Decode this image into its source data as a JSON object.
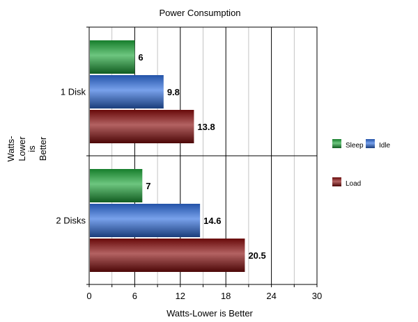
{
  "chart_data": {
    "type": "bar",
    "orientation": "horizontal",
    "title": "Power Consumption",
    "xlabel": "Watts-Lower is Better",
    "ylabel": [
      "Watts-",
      "Lower",
      "is",
      "Better"
    ],
    "categories": [
      "1 Disk",
      "2 Disks"
    ],
    "series": [
      {
        "name": "Sleep",
        "values": [
          6,
          7
        ],
        "color": "#1fa83a"
      },
      {
        "name": "Idle",
        "values": [
          9.8,
          14.6
        ],
        "color": "#2f6fe0"
      },
      {
        "name": "Load",
        "values": [
          13.8,
          20.5
        ],
        "color": "#8a0d0d"
      }
    ],
    "value_labels": [
      [
        "6",
        "7"
      ],
      [
        "9.8",
        "14.6"
      ],
      [
        "13.8",
        "20.5"
      ]
    ],
    "xlim": [
      0,
      30
    ],
    "xticks": [
      0,
      6,
      12,
      18,
      24,
      30
    ],
    "xtick_labels": [
      "0",
      "6",
      "12",
      "18",
      "24",
      "30"
    ],
    "grid": "vertical",
    "legend_position": "right"
  }
}
